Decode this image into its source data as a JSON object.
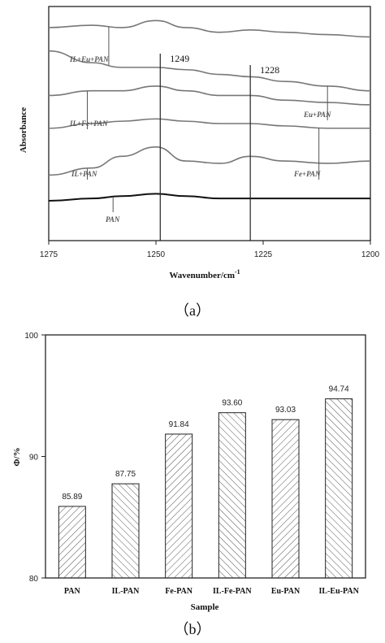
{
  "chart_data": [
    {
      "type": "line",
      "caption": "（a）",
      "xlabel": "Wavenumber/cm",
      "xlabel_sup": "-1",
      "ylabel": "Absorbance",
      "xlim": [
        1275,
        1200
      ],
      "x_ticks": [
        "1275",
        "1250",
        "1225",
        "1200"
      ],
      "grid": false,
      "markers": [
        {
          "x": 1249,
          "label": "1249"
        },
        {
          "x": 1228,
          "label": "1228"
        }
      ],
      "series": [
        {
          "name": "IL+Eu+PAN",
          "x": [
            1275,
            1265,
            1258,
            1250,
            1243,
            1235,
            1228,
            1220,
            1210,
            1200
          ],
          "y": [
            0.91,
            0.92,
            0.91,
            0.94,
            0.91,
            0.89,
            0.9,
            0.89,
            0.88,
            0.87
          ]
        },
        {
          "name": "Eu+PAN",
          "x": [
            1275,
            1265,
            1258,
            1250,
            1243,
            1235,
            1228,
            1220,
            1210,
            1200
          ],
          "y": [
            0.81,
            0.76,
            0.74,
            0.74,
            0.73,
            0.71,
            0.7,
            0.68,
            0.66,
            0.64
          ]
        },
        {
          "name": "IL+Fe+PAN",
          "x": [
            1275,
            1265,
            1258,
            1250,
            1243,
            1235,
            1228,
            1220,
            1210,
            1200
          ],
          "y": [
            0.62,
            0.64,
            0.64,
            0.66,
            0.64,
            0.62,
            0.62,
            0.6,
            0.59,
            0.58
          ]
        },
        {
          "name": "Fe+PAN",
          "x": [
            1275,
            1265,
            1258,
            1250,
            1243,
            1235,
            1228,
            1220,
            1210,
            1200
          ],
          "y": [
            0.48,
            0.5,
            0.51,
            0.52,
            0.51,
            0.5,
            0.5,
            0.49,
            0.48,
            0.48
          ]
        },
        {
          "name": "IL+PAN",
          "x": [
            1275,
            1265,
            1258,
            1250,
            1243,
            1235,
            1228,
            1220,
            1210,
            1200
          ],
          "y": [
            0.28,
            0.31,
            0.36,
            0.4,
            0.34,
            0.33,
            0.36,
            0.34,
            0.33,
            0.34
          ]
        },
        {
          "name": "PAN",
          "x": [
            1275,
            1265,
            1258,
            1250,
            1243,
            1235,
            1228,
            1220,
            1210,
            1200
          ],
          "y": [
            0.17,
            0.18,
            0.19,
            0.2,
            0.19,
            0.18,
            0.18,
            0.18,
            0.18,
            0.18
          ]
        }
      ]
    },
    {
      "type": "bar",
      "caption": "（b）",
      "xlabel": "Sample",
      "ylabel": "Φ/%",
      "ylim": [
        80,
        100
      ],
      "y_ticks": [
        "80",
        "90",
        "100"
      ],
      "grid": false,
      "categories": [
        "PAN",
        "IL-PAN",
        "Fe-PAN",
        "IL-Fe-PAN",
        "Eu-PAN",
        "IL-Eu-PAN"
      ],
      "values": [
        85.89,
        87.75,
        91.84,
        93.6,
        93.03,
        94.74
      ],
      "value_labels": [
        "85.89",
        "87.75",
        "91.84",
        "93.60",
        "93.03",
        "94.74"
      ]
    }
  ]
}
